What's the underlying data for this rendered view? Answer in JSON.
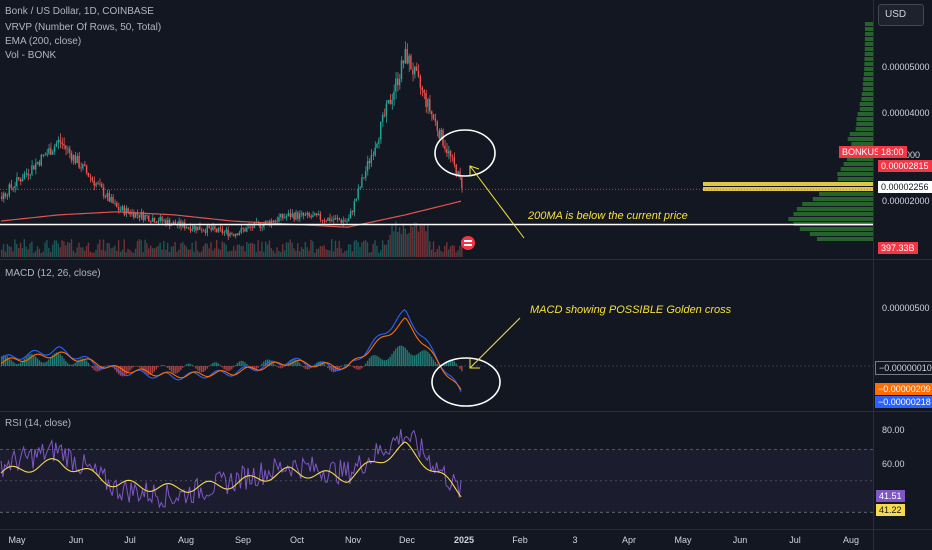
{
  "legend": {
    "symbol": "Bonk / US Dollar, 1D, COINBASE",
    "vrvp": "VRVP (Number Of Rows, 50, Total)",
    "ema": "EMA (200, close)",
    "vol": "Vol - BONK"
  },
  "currency": "USD",
  "price_axis": {
    "ticks": [
      "0.00005000",
      "0.00004000",
      "0.00002000"
    ],
    "partial_tick": "3000",
    "symbol_tag": "BONKUSD",
    "countdown": "18:00",
    "current_price": "0.00002815",
    "hline_price": "0.00002256",
    "volume_tag": "397.33B"
  },
  "macd": {
    "title": "MACD (12, 26, close)",
    "tick": "0.00000500",
    "hist_tag": "−0.00000010",
    "signal_tag": "−0.00000209",
    "macd_tag": "−0.00000218"
  },
  "rsi": {
    "title": "RSI (14, close)",
    "ticks": [
      "80.00",
      "60.00"
    ],
    "rsi_tag": "41.51",
    "ma_tag": "41.22"
  },
  "time_axis": [
    "May",
    "Jun",
    "Jul",
    "Aug",
    "Sep",
    "Oct",
    "Nov",
    "Dec",
    "2025",
    "Feb",
    "3",
    "Apr",
    "May",
    "Jun",
    "Jul",
    "Aug"
  ],
  "annotations": {
    "ma_note": "200MA is below the current price",
    "macd_note": "MACD showing POSSIBLE Golden cross"
  },
  "colors": {
    "background": "#131722",
    "up": "#26a69a",
    "down": "#ef5350",
    "ema": "#e0544e",
    "macd": "#2962ff",
    "signal": "#ff6d00",
    "rsi": "#7e57c2",
    "rsi_ma": "#f7d94c",
    "vrvp": "#2e7d32",
    "poc": "#f7d94c",
    "annotation": "#f5e13a"
  },
  "icons": [
    "flag-icon"
  ],
  "chart_data": [
    {
      "type": "candlestick",
      "title": "Bonk / US Dollar, 1D, COINBASE",
      "x": [
        "May",
        "Jun",
        "Jul",
        "Aug",
        "Sep",
        "Oct",
        "Nov",
        "Dec",
        "2025"
      ],
      "close": [
        2.7e-05,
        3.6e-05,
        2.5e-05,
        2.25e-05,
        2.1e-05,
        2.4e-05,
        2.3e-05,
        5e-05,
        2.82e-05
      ],
      "ema200": [
        2.3e-05,
        2.4e-05,
        2.45e-05,
        2.4e-05,
        2.3e-05,
        2.25e-05,
        2.2e-05,
        2.4e-05,
        2.63e-05
      ],
      "hline": 2.256e-05,
      "last": 2.815e-05,
      "ylim": [
        1.75e-05,
        5.8e-05
      ]
    },
    {
      "type": "line",
      "title": "MACD (12, 26, close)",
      "x": [
        "May",
        "Jun",
        "Jul",
        "Aug",
        "Sep",
        "Oct",
        "Nov",
        "Dec",
        "2025"
      ],
      "macd_line": [
        5e-07,
        1.2e-06,
        -4e-07,
        -8e-07,
        -5e-07,
        4e-07,
        -2e-07,
        4e-06,
        -2.18e-06
      ],
      "signal_line": [
        3e-07,
        9e-07,
        -2e-07,
        -7e-07,
        -5e-07,
        3e-07,
        -1e-07,
        3.4e-06,
        -2.09e-06
      ],
      "last_hist": -1e-07
    },
    {
      "type": "line",
      "title": "RSI (14, close)",
      "x": [
        "May",
        "Jun",
        "Jul",
        "Aug",
        "Sep",
        "Oct",
        "Nov",
        "Dec",
        "2025"
      ],
      "rsi": [
        60,
        70,
        45,
        40,
        50,
        60,
        55,
        80,
        41.51
      ],
      "rsi_ma": [
        55,
        62,
        48,
        45,
        48,
        56,
        52,
        72,
        41.22
      ],
      "ylim": [
        20,
        90
      ]
    }
  ]
}
